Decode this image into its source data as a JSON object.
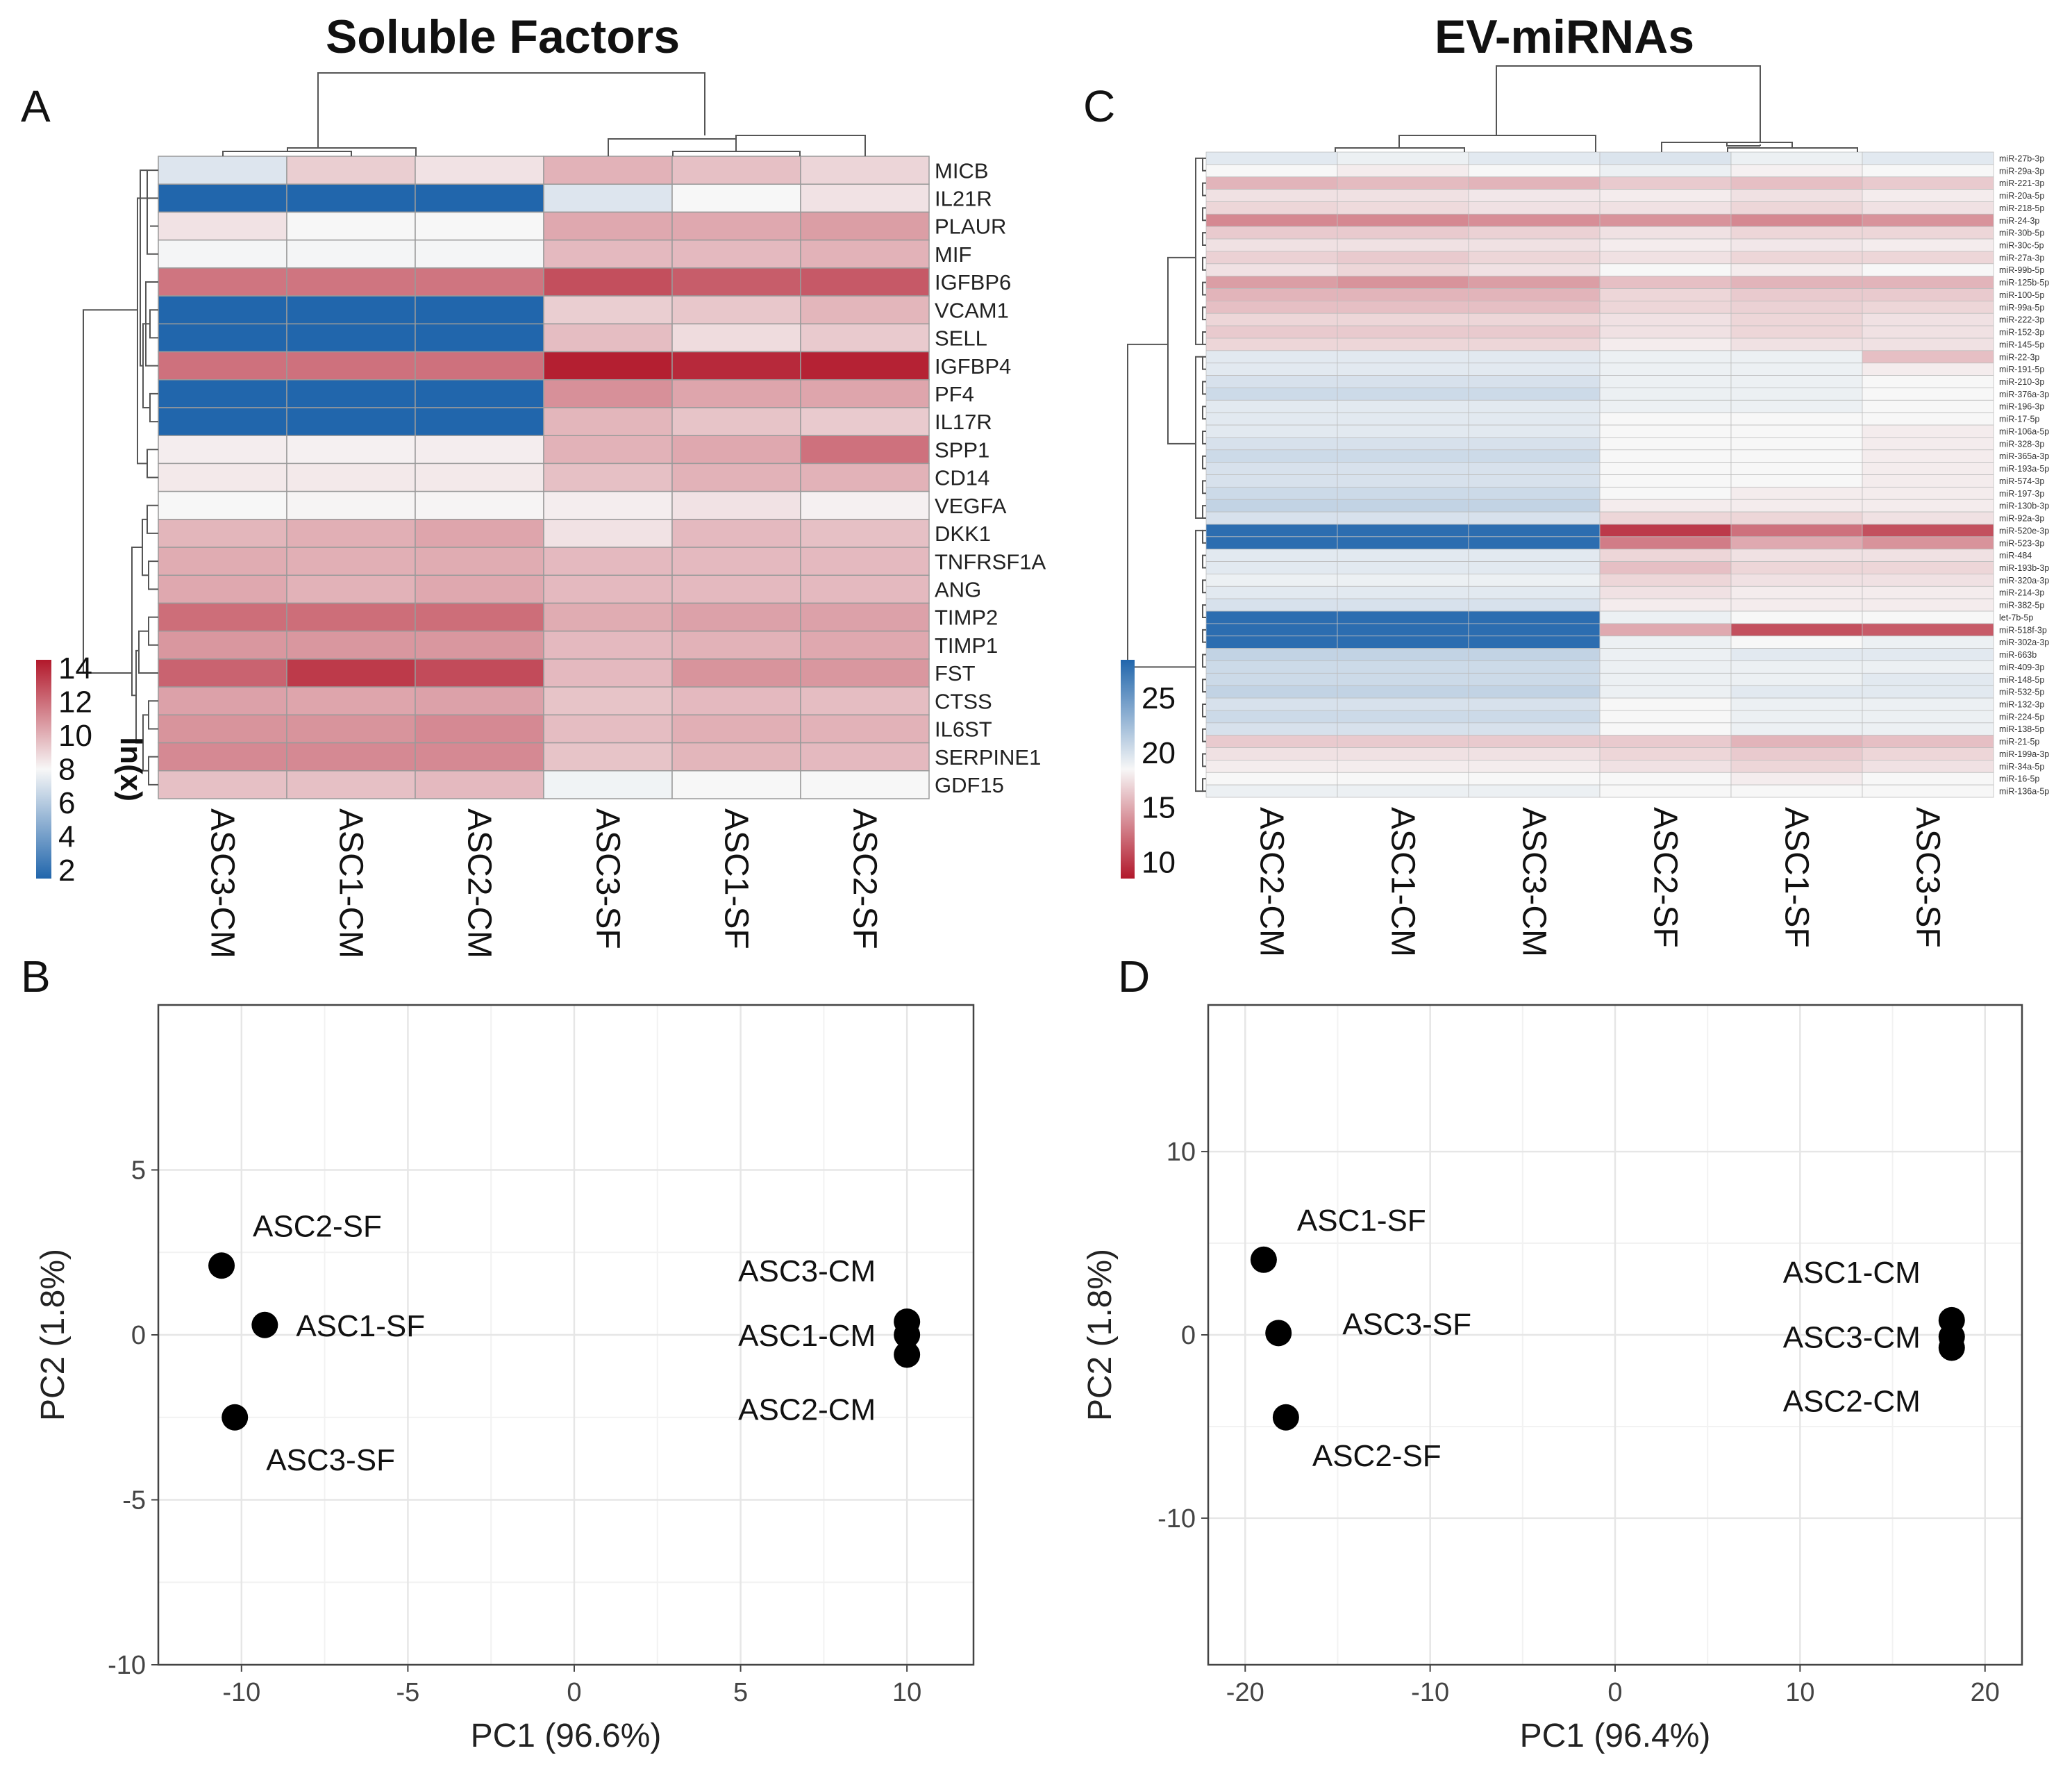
{
  "titles": {
    "soluble": "Soluble Factors",
    "ev": "EV-miRNAs"
  },
  "panel_labels": {
    "a": "A",
    "b": "B",
    "c": "C",
    "d": "D"
  },
  "chart_data": [
    {
      "panel": "A",
      "type": "heatmap",
      "title": "Soluble Factors",
      "rows": [
        "MICB",
        "IL21R",
        "PLAUR",
        "MIF",
        "IGFBP6",
        "VCAM1",
        "SELL",
        "IGFBP4",
        "PF4",
        "IL17R",
        "SPP1",
        "CD14",
        "VEGFA",
        "DKK1",
        "TNFRSF1A",
        "ANG",
        "TIMP2",
        "TIMP1",
        "FST",
        "CTSS",
        "IL6ST",
        "SERPINE1",
        "GDF15"
      ],
      "columns": [
        "ASC3-CM",
        "ASC1-CM",
        "ASC2-CM",
        "ASC3-SF",
        "ASC1-SF",
        "ASC2-SF"
      ],
      "values": [
        [
          7.2,
          9.2,
          8.6,
          10.0,
          9.6,
          9.0
        ],
        [
          1.5,
          1.5,
          1.5,
          7.2,
          8.0,
          8.6
        ],
        [
          8.6,
          8.0,
          8.0,
          10.3,
          10.3,
          10.6
        ],
        [
          7.9,
          7.9,
          7.9,
          9.8,
          9.8,
          10.0
        ],
        [
          11.8,
          11.8,
          11.8,
          12.9,
          12.5,
          12.6
        ],
        [
          1.5,
          1.5,
          1.5,
          9.2,
          9.4,
          9.9
        ],
        [
          1.5,
          1.5,
          1.5,
          9.7,
          8.8,
          9.3
        ],
        [
          11.9,
          11.9,
          11.9,
          14.3,
          14.0,
          14.2
        ],
        [
          1.5,
          1.5,
          1.5,
          11.0,
          10.4,
          10.4
        ],
        [
          1.5,
          1.5,
          1.5,
          9.9,
          9.5,
          9.3
        ],
        [
          8.3,
          8.2,
          8.3,
          10.0,
          10.3,
          11.9
        ],
        [
          8.4,
          8.4,
          8.4,
          9.6,
          10.0,
          10.0
        ],
        [
          8.0,
          8.1,
          8.1,
          8.3,
          8.6,
          8.2
        ],
        [
          9.9,
          10.1,
          10.4,
          8.6,
          9.8,
          9.6
        ],
        [
          10.2,
          10.1,
          10.2,
          9.8,
          9.8,
          9.8
        ],
        [
          10.3,
          10.0,
          10.3,
          9.8,
          9.8,
          9.8
        ],
        [
          12.0,
          12.0,
          12.0,
          10.2,
          10.5,
          10.5
        ],
        [
          10.8,
          10.8,
          10.8,
          9.8,
          10.0,
          10.3
        ],
        [
          12.3,
          13.5,
          13.0,
          9.8,
          10.9,
          10.8
        ],
        [
          10.5,
          10.4,
          10.5,
          9.5,
          9.8,
          9.7
        ],
        [
          10.9,
          10.9,
          11.2,
          9.7,
          10.1,
          10.0
        ],
        [
          11.2,
          11.2,
          11.2,
          9.5,
          9.9,
          9.8
        ],
        [
          9.6,
          9.6,
          9.8,
          7.8,
          8.0,
          8.0
        ]
      ],
      "legend": {
        "title": "ln(x)",
        "ticks": [
          "2",
          "4",
          "6",
          "8",
          "10",
          "12",
          "14"
        ],
        "range": [
          1.5,
          14.5
        ],
        "low_color": "#2166ac",
        "mid_color": "#f7f7f7",
        "high_color": "#b2182b"
      }
    },
    {
      "panel": "C",
      "type": "heatmap",
      "title": "EV-miRNAs",
      "rows": [
        "miR-27b-3p",
        "miR-29a-3p",
        "miR-221-3p",
        "miR-20a-5p",
        "miR-218-5p",
        "miR-24-3p",
        "miR-30b-5p",
        "miR-30c-5p",
        "miR-27a-3p",
        "miR-99b-5p",
        "miR-125b-5p",
        "miR-100-5p",
        "miR-99a-5p",
        "miR-222-3p",
        "miR-152-3p",
        "miR-145-5p",
        "miR-22-3p",
        "miR-191-5p",
        "miR-210-3p",
        "miR-376a-3p",
        "miR-196-3p",
        "miR-17-5p",
        "miR-106a-5p",
        "miR-328-3p",
        "miR-365a-3p",
        "miR-193a-5p",
        "miR-574-3p",
        "miR-197-3p",
        "miR-130b-3p",
        "miR-92a-3p",
        "miR-520e-3p",
        "miR-523-3p",
        "miR-484",
        "miR-193b-3p",
        "miR-320a-3p",
        "miR-214-3p",
        "miR-382-5p",
        "let-7b-5p",
        "miR-518f-3p",
        "miR-302a-3p",
        "miR-663b",
        "miR-409-3p",
        "miR-148-5p",
        "miR-532-5p",
        "miR-132-3p",
        "miR-224-5p",
        "miR-138-5p",
        "miR-21-5p",
        "miR-199a-3p",
        "miR-34a-5p",
        "miR-16-5p",
        "miR-136a-5p"
      ],
      "columns": [
        "ASC2-CM",
        "ASC1-CM",
        "ASC3-CM",
        "ASC2-SF",
        "ASC1-SF",
        "ASC3-SF"
      ],
      "values": [
        [
          19.5,
          19.0,
          19.5,
          19.8,
          19.0,
          19.5
        ],
        [
          18.5,
          18.0,
          18.5,
          19.0,
          18.2,
          18.5
        ],
        [
          15.5,
          15.8,
          15.5,
          16.5,
          16.0,
          16.5
        ],
        [
          17.5,
          17.5,
          17.8,
          18.0,
          17.5,
          18.0
        ],
        [
          17.0,
          17.2,
          17.5,
          17.5,
          17.0,
          17.5
        ],
        [
          13.5,
          13.5,
          13.8,
          14.0,
          13.5,
          14.0
        ],
        [
          16.5,
          16.5,
          16.8,
          17.5,
          17.0,
          17.0
        ],
        [
          17.5,
          17.5,
          17.5,
          18.0,
          17.8,
          18.0
        ],
        [
          16.8,
          16.5,
          17.0,
          17.5,
          17.0,
          17.0
        ],
        [
          17.5,
          17.0,
          17.5,
          18.5,
          18.0,
          18.5
        ],
        [
          14.5,
          14.0,
          14.5,
          16.0,
          15.5,
          15.5
        ],
        [
          15.5,
          15.5,
          15.5,
          17.0,
          16.5,
          16.5
        ],
        [
          16.0,
          16.0,
          16.0,
          17.0,
          16.8,
          17.0
        ],
        [
          17.0,
          17.0,
          17.0,
          17.5,
          17.0,
          17.5
        ],
        [
          16.5,
          16.5,
          16.5,
          17.5,
          17.0,
          17.5
        ],
        [
          17.0,
          17.0,
          17.0,
          18.0,
          17.5,
          17.5
        ],
        [
          19.5,
          19.5,
          19.5,
          19.0,
          19.0,
          16.0
        ],
        [
          19.5,
          19.5,
          19.5,
          19.0,
          19.0,
          18.0
        ],
        [
          20.0,
          20.0,
          20.0,
          19.0,
          19.0,
          18.5
        ],
        [
          20.5,
          20.5,
          20.5,
          19.0,
          19.0,
          18.5
        ],
        [
          19.5,
          19.5,
          19.5,
          19.0,
          19.0,
          18.5
        ],
        [
          19.5,
          19.5,
          19.5,
          18.5,
          18.5,
          18.5
        ],
        [
          19.5,
          19.5,
          19.5,
          18.5,
          18.5,
          18.0
        ],
        [
          20.0,
          20.0,
          20.0,
          18.5,
          18.5,
          18.0
        ],
        [
          20.5,
          20.5,
          20.5,
          18.5,
          18.5,
          18.0
        ],
        [
          20.0,
          20.0,
          20.0,
          18.5,
          18.5,
          18.0
        ],
        [
          20.0,
          20.0,
          20.0,
          18.5,
          18.5,
          18.0
        ],
        [
          20.5,
          20.5,
          20.5,
          18.5,
          18.0,
          18.0
        ],
        [
          21.0,
          21.0,
          21.0,
          18.0,
          18.0,
          18.0
        ],
        [
          20.0,
          20.0,
          20.0,
          17.0,
          17.0,
          17.5
        ],
        [
          28.0,
          28.0,
          28.0,
          10.0,
          12.5,
          11.0
        ],
        [
          28.0,
          28.0,
          28.0,
          13.0,
          15.0,
          14.0
        ],
        [
          19.5,
          19.5,
          19.5,
          17.0,
          17.5,
          17.5
        ],
        [
          19.5,
          19.5,
          19.5,
          16.0,
          17.0,
          17.0
        ],
        [
          19.0,
          19.0,
          19.0,
          17.0,
          17.5,
          17.5
        ],
        [
          19.5,
          19.5,
          19.5,
          17.5,
          18.0,
          18.0
        ],
        [
          20.0,
          20.0,
          20.0,
          18.0,
          18.0,
          18.0
        ],
        [
          28.0,
          28.0,
          28.0,
          19.0,
          18.5,
          18.5
        ],
        [
          28.0,
          28.0,
          28.0,
          15.0,
          11.0,
          11.5
        ],
        [
          28.0,
          28.0,
          28.0,
          19.0,
          18.5,
          19.0
        ],
        [
          21.0,
          21.0,
          21.0,
          19.0,
          19.5,
          19.5
        ],
        [
          20.5,
          20.5,
          20.5,
          19.0,
          19.0,
          19.0
        ],
        [
          20.5,
          20.5,
          20.5,
          19.0,
          19.0,
          19.5
        ],
        [
          21.0,
          21.0,
          21.0,
          19.0,
          19.5,
          19.5
        ],
        [
          20.0,
          20.0,
          20.0,
          18.5,
          19.0,
          19.0
        ],
        [
          20.5,
          20.5,
          20.5,
          18.5,
          19.0,
          19.0
        ],
        [
          20.0,
          20.0,
          20.0,
          18.5,
          19.0,
          19.0
        ],
        [
          16.5,
          16.5,
          16.5,
          16.5,
          15.5,
          16.0
        ],
        [
          17.5,
          17.5,
          17.5,
          17.0,
          16.5,
          17.0
        ],
        [
          18.0,
          18.0,
          18.0,
          17.5,
          17.0,
          17.5
        ],
        [
          18.5,
          18.5,
          18.5,
          18.5,
          18.0,
          18.5
        ],
        [
          19.0,
          19.0,
          19.0,
          18.5,
          18.5,
          18.5
        ]
      ],
      "legend": {
        "title": "",
        "ticks": [
          "10",
          "15",
          "20",
          "25"
        ],
        "range": [
          8.5,
          28.5
        ],
        "low_color": "#b2182b",
        "mid_color": "#f7f7f7",
        "high_color": "#2166ac"
      }
    },
    {
      "panel": "B",
      "type": "scatter",
      "xlabel": "PC1 (96.6%)",
      "ylabel": "PC2 (1.8%)",
      "xlim": [
        -12.5,
        12
      ],
      "ylim": [
        -10,
        10
      ],
      "xticks": [
        -10,
        -5,
        0,
        5,
        10
      ],
      "yticks": [
        -10,
        -5,
        0,
        5
      ],
      "points": [
        {
          "label": "ASC2-SF",
          "x": -10.6,
          "y": 2.1
        },
        {
          "label": "ASC1-SF",
          "x": -9.3,
          "y": 0.3
        },
        {
          "label": "ASC3-SF",
          "x": -10.2,
          "y": -2.5
        },
        {
          "label": "ASC3-CM",
          "x": 10.0,
          "y": 0.4
        },
        {
          "label": "ASC1-CM",
          "x": 10.0,
          "y": 0.0
        },
        {
          "label": "ASC2-CM",
          "x": 10.0,
          "y": -0.6
        }
      ]
    },
    {
      "panel": "D",
      "type": "scatter",
      "xlabel": "PC1 (96.4%)",
      "ylabel": "PC2 (1.8%)",
      "xlim": [
        -22,
        22
      ],
      "ylim": [
        -18,
        18
      ],
      "xticks": [
        -20,
        -10,
        0,
        10,
        20
      ],
      "yticks": [
        -10,
        0,
        10
      ],
      "points": [
        {
          "label": "ASC1-SF",
          "x": -19.0,
          "y": 4.1
        },
        {
          "label": "ASC3-SF",
          "x": -18.2,
          "y": 0.1
        },
        {
          "label": "ASC2-SF",
          "x": -17.8,
          "y": -4.5
        },
        {
          "label": "ASC1-CM",
          "x": 18.2,
          "y": 0.8
        },
        {
          "label": "ASC3-CM",
          "x": 18.2,
          "y": -0.1
        },
        {
          "label": "ASC2-CM",
          "x": 18.2,
          "y": -0.7
        }
      ]
    }
  ]
}
